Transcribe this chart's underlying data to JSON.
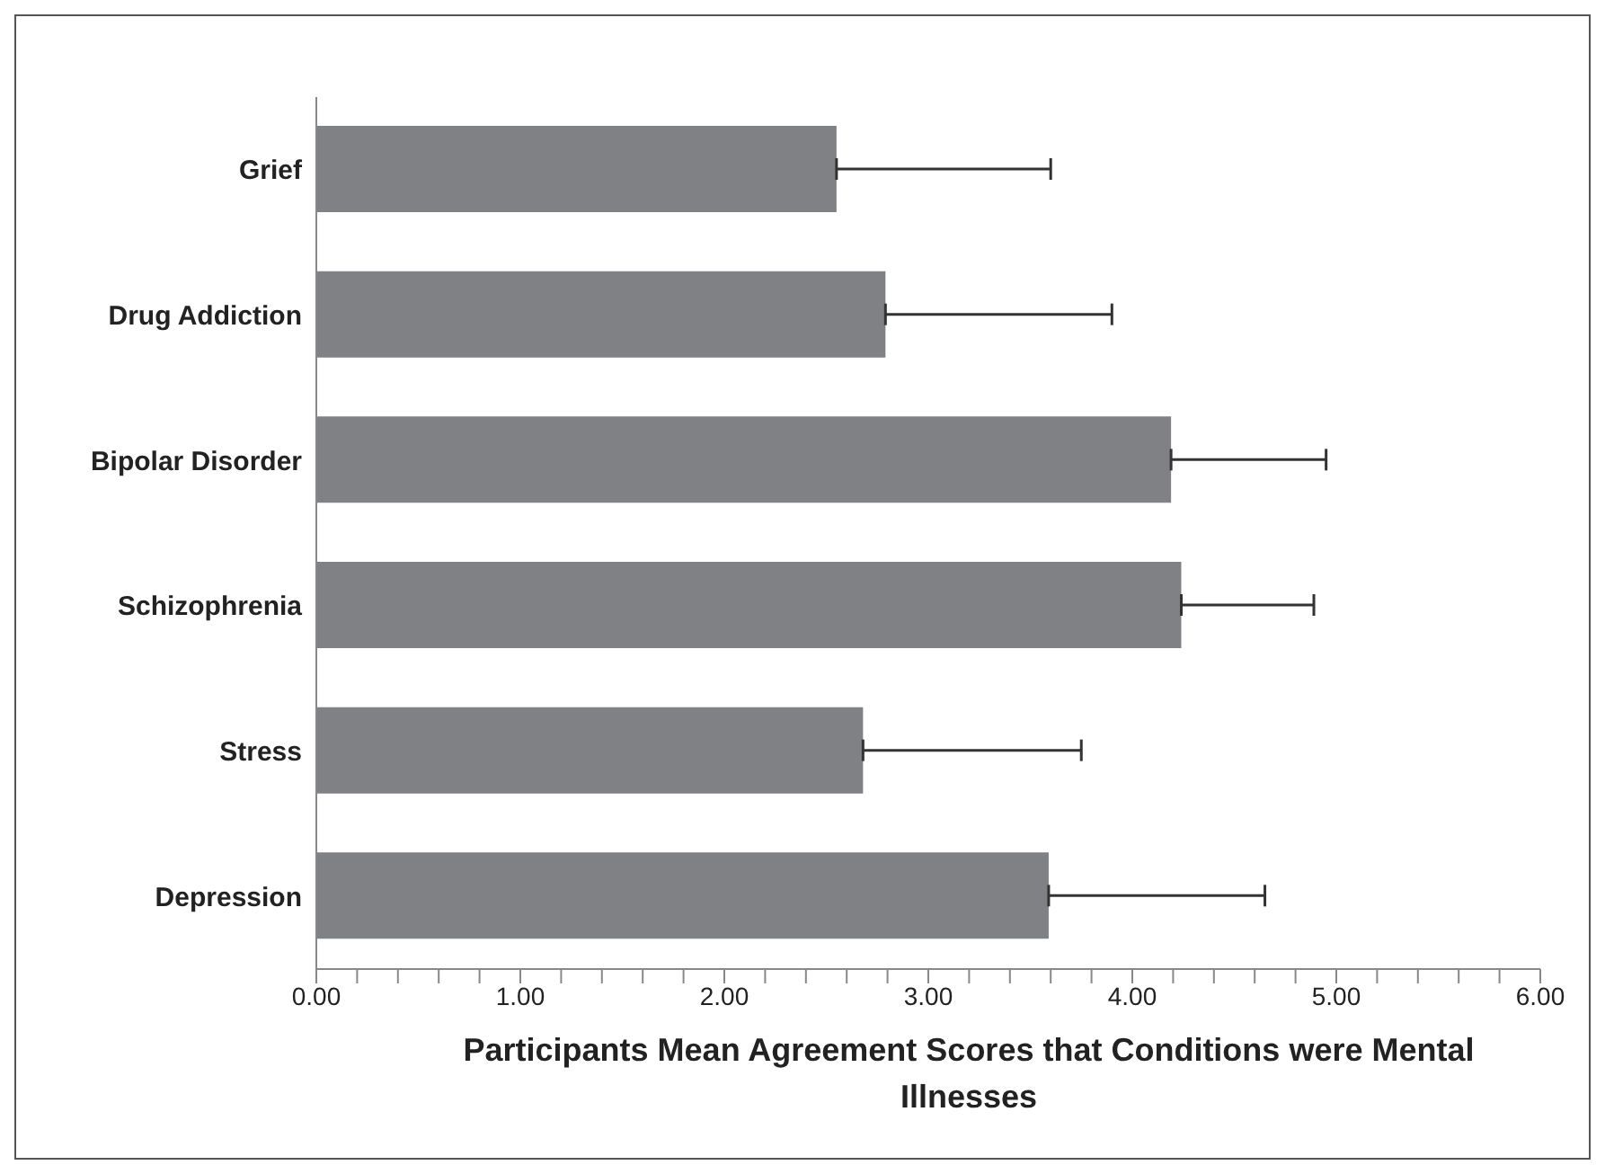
{
  "chart_data": {
    "type": "bar",
    "orientation": "horizontal",
    "xlabel": "Participants Mean Agreement Scores that Conditions were Mental Illnesses",
    "categories": [
      "Grief",
      "Drug Addiction",
      "Bipolar Disorder",
      "Schizophrenia",
      "Stress",
      "Depression"
    ],
    "values": [
      2.55,
      2.79,
      4.19,
      4.24,
      2.68,
      3.59
    ],
    "errors": [
      [
        2.55,
        3.6
      ],
      [
        2.79,
        3.9
      ],
      [
        4.19,
        4.95
      ],
      [
        4.24,
        4.89
      ],
      [
        2.68,
        3.75
      ],
      [
        3.59,
        4.65
      ]
    ],
    "color": "#808184",
    "xlim": [
      0,
      6
    ],
    "xticks": [
      {
        "value": 0,
        "label": "0.00"
      },
      {
        "value": 0.2,
        "label": null
      },
      {
        "value": 0.4,
        "label": null
      },
      {
        "value": 0.6,
        "label": null
      },
      {
        "value": 0.8,
        "label": null
      },
      {
        "value": 1,
        "label": "1.00"
      },
      {
        "value": 1.2,
        "label": null
      },
      {
        "value": 1.4,
        "label": null
      },
      {
        "value": 1.6,
        "label": null
      },
      {
        "value": 1.8,
        "label": null
      },
      {
        "value": 2,
        "label": "2.00"
      },
      {
        "value": 2.2,
        "label": null
      },
      {
        "value": 2.4,
        "label": null
      },
      {
        "value": 2.6,
        "label": null
      },
      {
        "value": 2.8,
        "label": null
      },
      {
        "value": 3,
        "label": "3.00"
      },
      {
        "value": 3.2,
        "label": null
      },
      {
        "value": 3.4,
        "label": null
      },
      {
        "value": 3.6,
        "label": null
      },
      {
        "value": 3.8,
        "label": null
      },
      {
        "value": 4,
        "label": "4.00"
      },
      {
        "value": 4.2,
        "label": null
      },
      {
        "value": 4.4,
        "label": null
      },
      {
        "value": 4.6,
        "label": null
      },
      {
        "value": 4.8,
        "label": null
      },
      {
        "value": 5,
        "label": "5.00"
      },
      {
        "value": 5.2,
        "label": null
      },
      {
        "value": 5.4,
        "label": null
      },
      {
        "value": 5.6,
        "label": null
      },
      {
        "value": 5.8,
        "label": null
      },
      {
        "value": 6,
        "label": "6.00"
      }
    ],
    "grid": false,
    "legend": false
  }
}
